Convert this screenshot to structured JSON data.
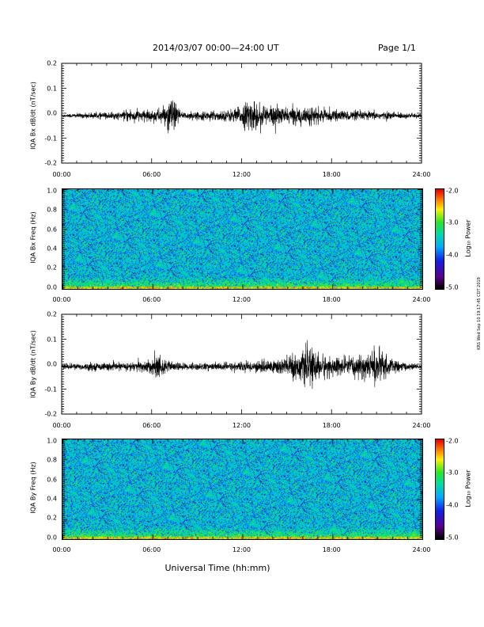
{
  "header": {
    "title": "2014/03/07  00:00—24:00 UT",
    "page": "Page 1/1"
  },
  "x_axis": {
    "ticks": [
      "00:00",
      "06:00",
      "12:00",
      "18:00",
      "24:00"
    ],
    "title": "Universal Time (hh:mm)"
  },
  "colorbar": {
    "ticks": [
      "-2.0",
      "-3.0",
      "-4.0",
      "-5.0"
    ],
    "label": "Log₁₀ Power"
  },
  "timestamp": "KRS Wed Sep 10 19:17:45 CDT 2019",
  "chart_data": [
    {
      "type": "line",
      "ylabel": "IQA Bx dB/dt (nT/sec)",
      "ylim": [
        -0.2,
        0.2
      ],
      "yticks": [
        "0.2",
        "0.1",
        "0.0",
        "-0.1",
        "-0.2"
      ],
      "xlim": [
        "00:00",
        "24:00"
      ],
      "series": [
        {
          "x": [
            0,
            2,
            4,
            4.5,
            5,
            6,
            7,
            7.2,
            8,
            9,
            10,
            11,
            12,
            12.5,
            13,
            13.5,
            14,
            15,
            16,
            16.5,
            17,
            18,
            20,
            22,
            24
          ],
          "amplitude": [
            0.01,
            0.015,
            0.02,
            0.04,
            0.03,
            0.03,
            0.05,
            0.11,
            0.02,
            0.02,
            0.025,
            0.03,
            0.05,
            0.09,
            0.07,
            0.06,
            0.06,
            0.04,
            0.05,
            0.05,
            0.04,
            0.03,
            0.025,
            0.02,
            0.01
          ]
        }
      ]
    },
    {
      "type": "heatmap",
      "ylabel": "IQA Bx Freq (Hz)",
      "ylim": [
        0.0,
        1.0
      ],
      "yticks": [
        "1.0",
        "0.8",
        "0.6",
        "0.4",
        "0.2",
        "0.0"
      ],
      "xlim": [
        "00:00",
        "24:00"
      ],
      "zlim": [
        -5.0,
        -2.0
      ],
      "colorbar_label": "Log₁₀ Power"
    },
    {
      "type": "line",
      "ylabel": "IQA By dB/dt (nT/sec)",
      "ylim": [
        -0.2,
        0.2
      ],
      "yticks": [
        "0.2",
        "0.1",
        "0.0",
        "-0.1",
        "-0.2"
      ],
      "xlim": [
        "00:00",
        "24:00"
      ],
      "series": [
        {
          "x": [
            0,
            2,
            4,
            6,
            6.5,
            7,
            8,
            10,
            12,
            13,
            14,
            15,
            16,
            16.5,
            17,
            18,
            19,
            20,
            21,
            21.5,
            22,
            23,
            24
          ],
          "amplitude": [
            0.015,
            0.02,
            0.02,
            0.04,
            0.07,
            0.03,
            0.02,
            0.02,
            0.025,
            0.03,
            0.04,
            0.06,
            0.08,
            0.1,
            0.08,
            0.05,
            0.05,
            0.06,
            0.1,
            0.07,
            0.04,
            0.02,
            0.01
          ]
        }
      ]
    },
    {
      "type": "heatmap",
      "ylabel": "IQA By Freq (Hz)",
      "ylim": [
        0.0,
        1.0
      ],
      "yticks": [
        "1.0",
        "0.8",
        "0.6",
        "0.4",
        "0.2",
        "0.0"
      ],
      "xlim": [
        "00:00",
        "24:00"
      ],
      "zlim": [
        -5.0,
        -2.0
      ],
      "colorbar_label": "Log₁₀ Power"
    }
  ]
}
